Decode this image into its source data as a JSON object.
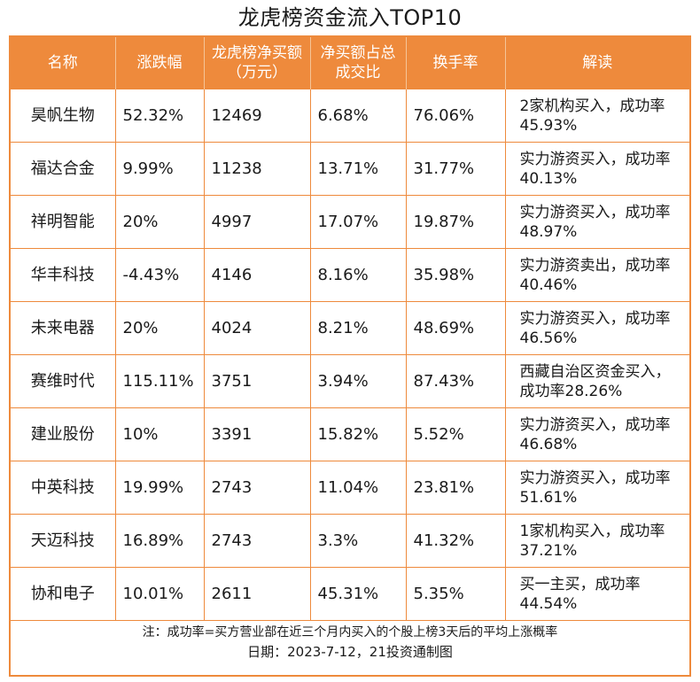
{
  "title": "龙虎榜资金流入TOP10",
  "headers": [
    "名称",
    "涨跌幅",
    "龙虎榜净买额（万元）",
    "净买额占总成交比",
    "换手率",
    "解读"
  ],
  "rows": [
    {
      "name": "昊帆生物",
      "change": "52.32%",
      "net_buy": "12469",
      "ratio": "6.68%",
      "turnover": "76.06%",
      "note": "2家机构买入，成功率45.93%"
    },
    {
      "name": "福达合金",
      "change": "9.99%",
      "net_buy": "11238",
      "ratio": "13.71%",
      "turnover": "31.77%",
      "note": "实力游资买入，成功率40.13%"
    },
    {
      "name": "祥明智能",
      "change": "20%",
      "net_buy": "4997",
      "ratio": "17.07%",
      "turnover": "19.87%",
      "note": "实力游资买入，成功率48.97%"
    },
    {
      "name": "华丰科技",
      "change": "-4.43%",
      "net_buy": "4146",
      "ratio": "8.16%",
      "turnover": "35.98%",
      "note": "实力游资卖出，成功率40.46%"
    },
    {
      "name": "未来电器",
      "change": "20%",
      "net_buy": "4024",
      "ratio": "8.21%",
      "turnover": "48.69%",
      "note": "实力游资买入，成功率46.56%"
    },
    {
      "name": "赛维时代",
      "change": "115.11%",
      "net_buy": "3751",
      "ratio": "3.94%",
      "turnover": "87.43%",
      "note": "西藏自治区资金买入，成功率28.26%"
    },
    {
      "name": "建业股份",
      "change": "10%",
      "net_buy": "3391",
      "ratio": "15.82%",
      "turnover": "5.52%",
      "note": "实力游资买入，成功率46.68%"
    },
    {
      "name": "中英科技",
      "change": "19.99%",
      "net_buy": "2743",
      "ratio": "11.04%",
      "turnover": "23.81%",
      "note": "实力游资买入，成功率51.61%"
    },
    {
      "name": "天迈科技",
      "change": "16.89%",
      "net_buy": "2743",
      "ratio": "3.3%",
      "turnover": "41.32%",
      "note": "1家机构买入，成功率37.21%"
    },
    {
      "name": "协和电子",
      "change": "10.01%",
      "net_buy": "2611",
      "ratio": "45.31%",
      "turnover": "5.35%",
      "note": "买一主买，成功率44.54%"
    }
  ],
  "footnote": "注：成功率=买方营业部在近三个月内买入的个股上榜3天后的平均上涨概率",
  "date_line": "日期：2023-7-12，21投资通制图",
  "colors": {
    "accent": "#ee8a3c",
    "header_text": "#ffffff"
  }
}
